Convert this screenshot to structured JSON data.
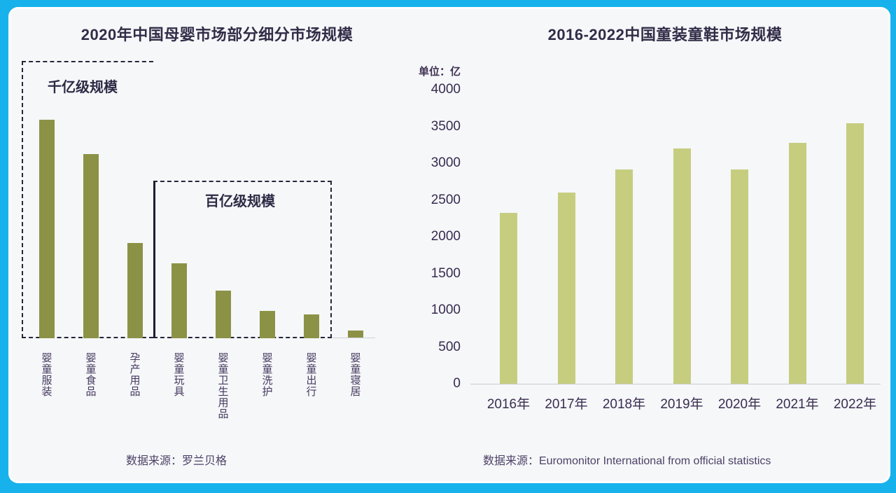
{
  "page": {
    "border_color": "#17b2ec",
    "panel_background": "#f5f7f9",
    "title_color": "#322c47",
    "dash_color": "#26263a"
  },
  "chart_data": [
    {
      "id": "left",
      "type": "bar",
      "title": "2020年中国母婴市场部分细分市场规模",
      "unit": "亿",
      "categories": [
        "婴童服装",
        "婴童食品",
        "孕产用品",
        "婴童玩具",
        "婴童卫生用品",
        "婴童洗护",
        "婴童出行",
        "婴童寝居"
      ],
      "values": [
        2300,
        1940,
        1000,
        790,
        500,
        290,
        250,
        80
      ],
      "values_estimated": true,
      "bar_color": "#8c9245",
      "annotations": {
        "tier1": "千亿级规模",
        "tier1_covers": [
          "婴童服装",
          "婴童食品",
          "孕产用品"
        ],
        "tier2": "百亿级规模",
        "tier2_covers": [
          "婴童玩具",
          "婴童卫生用品",
          "婴童洗护",
          "婴童出行"
        ]
      },
      "source": "数据来源：罗兰贝格",
      "grid": false,
      "y_axis_visible": false
    },
    {
      "id": "right",
      "type": "bar",
      "title": "2016-2022中国童装童鞋市场规模",
      "ylabel": "单位：亿",
      "unit": "亿",
      "categories": [
        "2016年",
        "2017年",
        "2018年",
        "2019年",
        "2020年",
        "2021年",
        "2022年"
      ],
      "values": [
        2320,
        2600,
        2910,
        3200,
        2910,
        3280,
        3540
      ],
      "values_estimated": true,
      "yticks": [
        0,
        500,
        1000,
        1500,
        2000,
        2500,
        3000,
        3500,
        4000
      ],
      "ylim": [
        0,
        4000
      ],
      "bar_color": "#c6cd7f",
      "source": "数据来源：Euromonitor International from official statistics",
      "grid": false,
      "legend": false
    }
  ]
}
